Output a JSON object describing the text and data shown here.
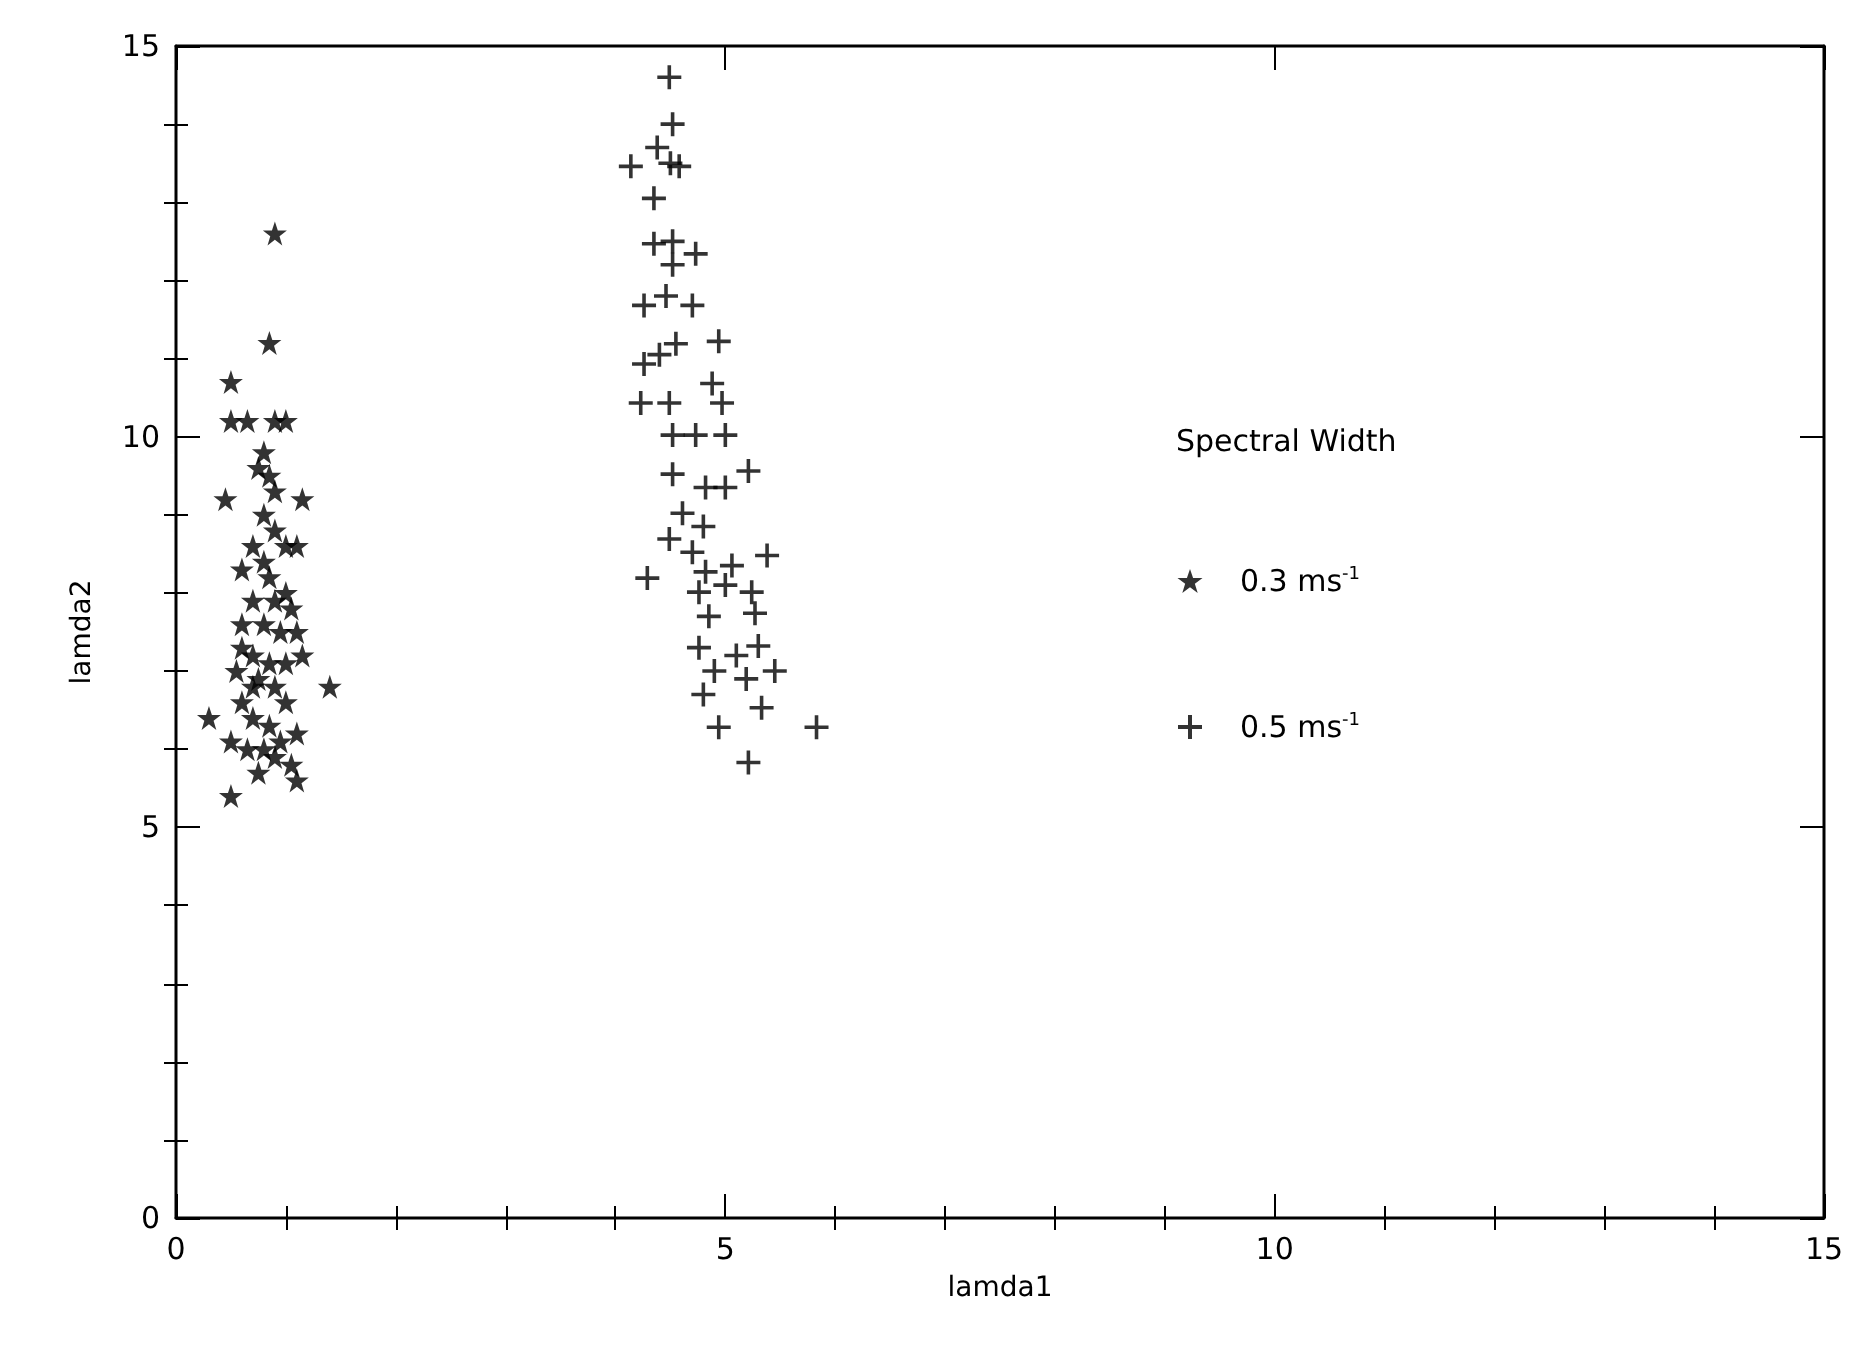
{
  "chart_data": {
    "type": "scatter",
    "xlabel": "lamda1",
    "ylabel": "lamda2",
    "legend_title": "Spectral Width",
    "legend": "right",
    "grid": false,
    "xlim": [
      0,
      15
    ],
    "ylim": [
      0,
      15
    ],
    "xticks": [
      0,
      5,
      10,
      15
    ],
    "yticks": [
      0,
      5,
      10,
      15
    ],
    "series": [
      {
        "name": "0.3 ms$^{-1}$",
        "color": "#000000",
        "marker": "star",
        "x": [
          0.9,
          0.85,
          0.5,
          0.5,
          0.65,
          0.9,
          1.0,
          0.8,
          0.85,
          0.9,
          0.45,
          1.15,
          0.8,
          0.9,
          0.7,
          1.0,
          1.1,
          0.6,
          0.85,
          1.0,
          0.7,
          1.05,
          0.6,
          0.8,
          0.95,
          1.1,
          0.7,
          0.85,
          1.0,
          1.15,
          0.55,
          0.75,
          0.9,
          1.4,
          0.6,
          1.0,
          0.3,
          0.7,
          0.85,
          1.1,
          0.5,
          0.65,
          0.9,
          1.05,
          0.75,
          1.1,
          0.5,
          0.95,
          0.8,
          0.75,
          0.6,
          0.9,
          0.7,
          0.8
        ],
        "values": [
          12.6,
          11.2,
          10.7,
          10.2,
          10.2,
          10.2,
          10.2,
          9.8,
          9.5,
          9.3,
          9.2,
          9.2,
          9.0,
          8.8,
          8.6,
          8.6,
          8.6,
          8.3,
          8.2,
          8.0,
          7.9,
          7.8,
          7.6,
          7.6,
          7.5,
          7.5,
          7.2,
          7.1,
          7.1,
          7.2,
          7.0,
          6.9,
          6.8,
          6.8,
          6.6,
          6.6,
          6.4,
          6.4,
          6.3,
          6.2,
          6.1,
          6.0,
          5.9,
          5.8,
          5.7,
          5.6,
          5.4,
          6.1,
          8.4,
          9.6,
          7.3,
          7.9,
          6.8,
          6.0
        ]
      },
      {
        "name": "0.5 ms$^{-1}$",
        "color": "#000000",
        "marker": "cross",
        "x": [
          4.49,
          4.52,
          4.38,
          4.14,
          4.5,
          4.58,
          4.35,
          4.35,
          4.52,
          4.73,
          4.52,
          4.26,
          4.46,
          4.7,
          4.55,
          4.94,
          4.26,
          4.4,
          4.23,
          4.49,
          4.88,
          4.97,
          4.52,
          4.73,
          5.0,
          5.21,
          4.52,
          4.82,
          5.0,
          4.61,
          4.8,
          4.49,
          4.7,
          5.38,
          4.29,
          4.82,
          5.06,
          4.76,
          5.0,
          5.24,
          4.85,
          5.27,
          4.76,
          5.1,
          5.3,
          4.9,
          5.45,
          5.19,
          4.8,
          5.33,
          4.94,
          5.83,
          5.21
        ],
        "values": [
          14.6,
          14.0,
          13.7,
          13.46,
          13.5,
          13.46,
          13.05,
          12.47,
          12.5,
          12.34,
          12.2,
          11.68,
          11.8,
          11.68,
          11.19,
          11.22,
          10.93,
          11.05,
          10.43,
          10.43,
          10.68,
          10.43,
          10.02,
          10.02,
          10.02,
          9.56,
          9.52,
          9.35,
          9.35,
          9.02,
          8.85,
          8.69,
          8.52,
          8.48,
          8.19,
          8.27,
          8.35,
          8.01,
          8.1,
          8.01,
          7.7,
          7.74,
          7.3,
          7.2,
          7.32,
          7.0,
          7.0,
          6.9,
          6.7,
          6.53,
          6.28,
          6.28,
          5.83
        ]
      }
    ]
  }
}
